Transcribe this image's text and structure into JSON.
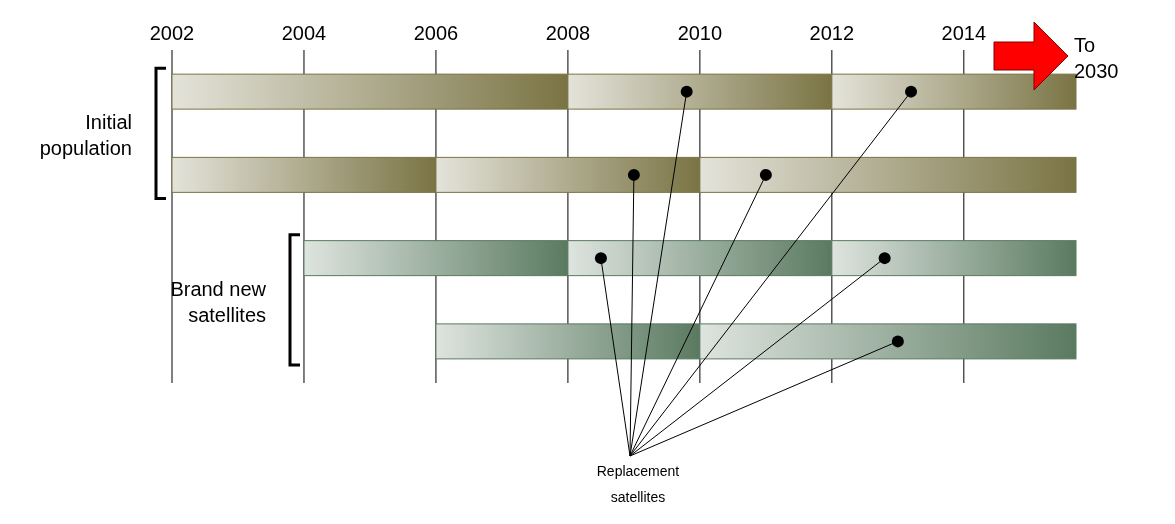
{
  "chart_data": {
    "type": "bar",
    "orientation": "horizontal",
    "categories": [
      null,
      null,
      null,
      null
    ],
    "xlim": [
      2002,
      2015.7
    ],
    "xticks": [
      2002,
      2004,
      2006,
      2008,
      2010,
      2012,
      2014
    ],
    "grid": "x",
    "series": [
      {
        "values": [
          6,
          4,
          4,
          4
        ],
        "base": [
          2002,
          2002,
          2004,
          2006
        ],
        "colors": [
          "#7a7444",
          "#7a7444",
          "#5a7a60",
          "#5a7a60"
        ]
      },
      {
        "values": [
          4,
          4,
          4,
          5.7
        ],
        "base": [
          2008,
          2006,
          2008,
          2010
        ],
        "colors": [
          "#7a7444",
          "#7a7444",
          "#5a7a60",
          "#5a7a60"
        ]
      },
      {
        "values": [
          3.7,
          5.7,
          3.7,
          null
        ],
        "base": [
          2012,
          2010,
          2012,
          null
        ],
        "colors": [
          "#7a7444",
          "#7a7444",
          "#5a7a60",
          null
        ]
      },
      {
        "type": "scatter",
        "marker": "circle",
        "color": "#000000",
        "values": [
          2009.8,
          2009.0,
          2008.5,
          2013.0
        ]
      },
      {
        "type": "scatter",
        "marker": "circle",
        "color": "#000000",
        "values": [
          2013.2,
          2011.0,
          2012.8,
          null
        ]
      }
    ],
    "annotations": [
      "Initial population",
      "Brand new satellites",
      "Replacement satellites",
      "To 2030"
    ]
  }
}
